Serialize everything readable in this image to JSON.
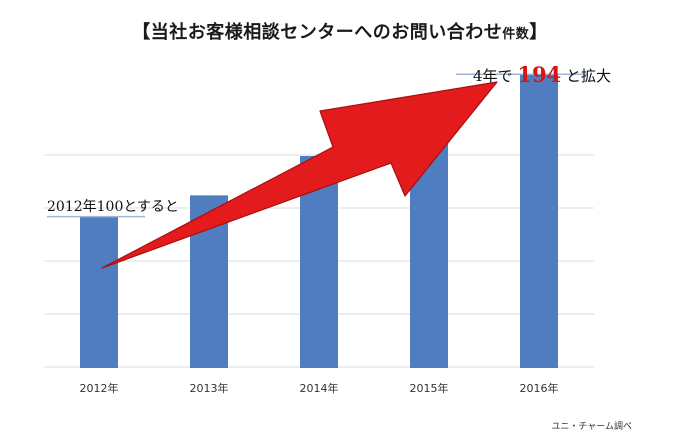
{
  "title": {
    "main": "【当社お客様相談センターへのお問い合わせ",
    "small": "件数",
    "close": "】"
  },
  "annotation_start": "2012年100とすると",
  "annotation_end": {
    "prefix": "4年で",
    "value": "194",
    "suffix": "と拡大"
  },
  "source": "ユニ・チャーム調べ",
  "colors": {
    "bar": "#4f7dc0",
    "arrow": "#e41b1c",
    "arrow_edge": "#a80f10",
    "highlight": "#d61518",
    "grid": "#dcdcdc"
  },
  "chart_data": {
    "type": "bar",
    "categories": [
      "2012年",
      "2013年",
      "2014年",
      "2015年",
      "2016年"
    ],
    "values": [
      100,
      114,
      140,
      148,
      194
    ],
    "ylim": [
      0,
      210
    ],
    "grid": true
  }
}
